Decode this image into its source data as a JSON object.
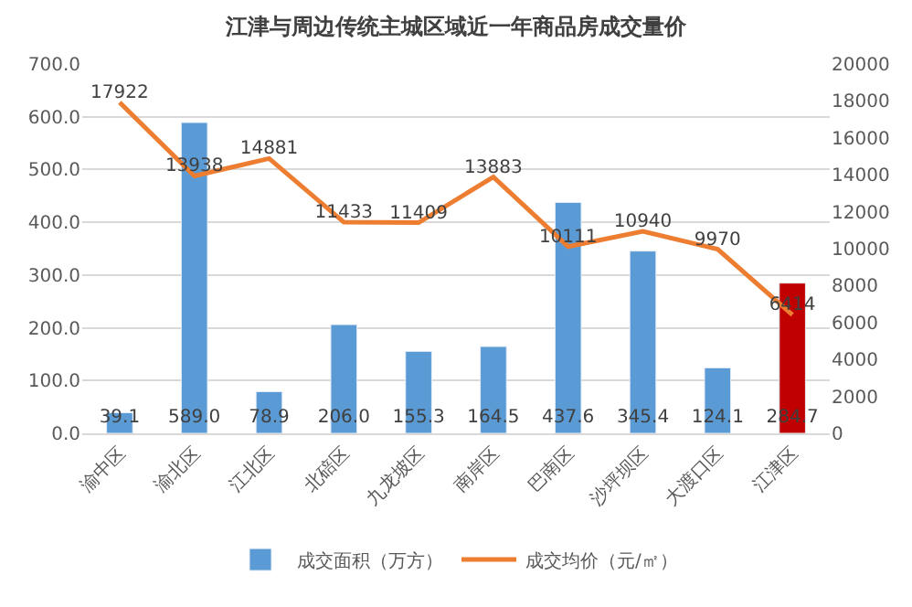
{
  "chart_data": {
    "type": "bar",
    "title": "江津与周边传统主城区域近一年商品房成交量价",
    "categories": [
      "渝中区",
      "渝北区",
      "江北区",
      "北碚区",
      "九龙坡区",
      "南岸区",
      "巴南区",
      "沙坪坝区",
      "大渡口区",
      "江津区"
    ],
    "series": [
      {
        "name": "成交面积（万方）",
        "color": "#5b9bd5",
        "colors": [
          null,
          null,
          null,
          null,
          null,
          null,
          null,
          null,
          null,
          "#c00000"
        ],
        "values": [
          39.1,
          589.0,
          78.9,
          206.0,
          155.3,
          164.5,
          437.6,
          345.4,
          124.1,
          284.7
        ],
        "value_labels": [
          "39.1",
          "589.0",
          "78.9",
          "206.0",
          "155.3",
          "164.5",
          "437.6",
          "345.4",
          "124.1",
          "284.7"
        ]
      },
      {
        "name": "成交均价（元/㎡）",
        "type": "line",
        "axis": "y2",
        "color": "#ed7d31",
        "values": [
          17922,
          13938,
          14881,
          11433,
          11409,
          13883,
          10111,
          10940,
          9970,
          6414
        ]
      }
    ],
    "data_labels": true,
    "ylim": [
      0,
      700
    ],
    "yticks": [
      {
        "value": 0,
        "label": "0.0"
      },
      {
        "value": 100,
        "label": "100.0"
      },
      {
        "value": 200,
        "label": "200.0"
      },
      {
        "value": 300,
        "label": "300.0"
      },
      {
        "value": 400,
        "label": "400.0"
      },
      {
        "value": 500,
        "label": "500.0"
      },
      {
        "value": 600,
        "label": "600.0"
      },
      {
        "value": 700,
        "label": "700.0"
      }
    ],
    "y2lim": [
      0,
      20000
    ],
    "y2ticks": [
      0,
      2000,
      4000,
      6000,
      8000,
      10000,
      12000,
      14000,
      16000,
      18000,
      20000
    ],
    "grid": "y",
    "legend": "bottom",
    "marker": "none",
    "line_style": "solid"
  }
}
